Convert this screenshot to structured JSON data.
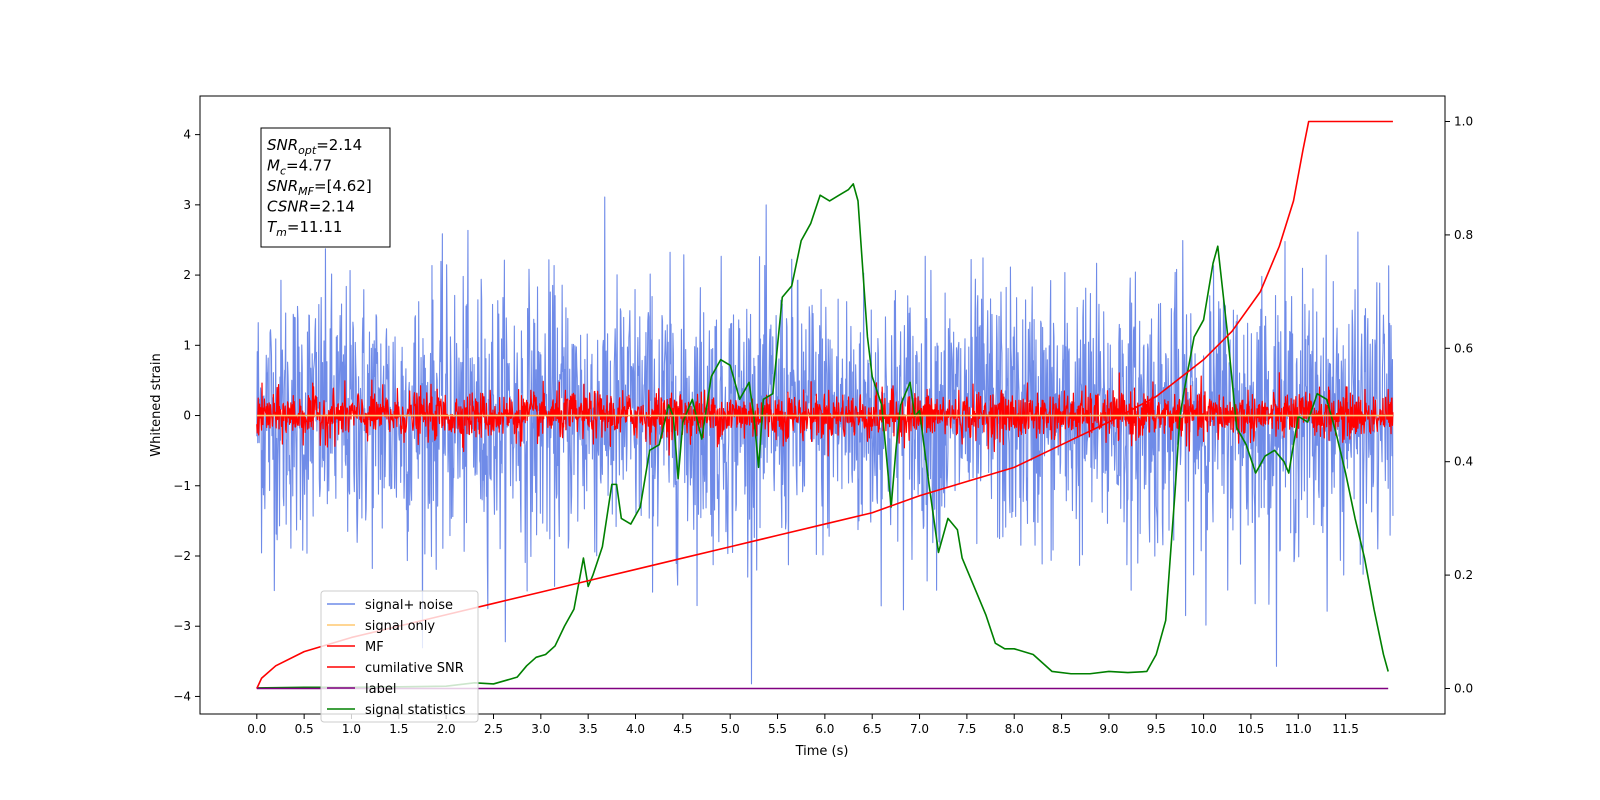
{
  "chart_data": {
    "type": "line",
    "xlabel": "Time (s)",
    "ylabel_left": "Whitened strain",
    "ylabel_right": "",
    "xlim": [
      -0.6,
      12.55
    ],
    "ylim_left": [
      -4.25,
      4.55
    ],
    "ylim_right": [
      -0.045,
      1.045
    ],
    "x_ticks": [
      0.0,
      0.5,
      1.0,
      1.5,
      2.0,
      2.5,
      3.0,
      3.5,
      4.0,
      4.5,
      5.0,
      5.5,
      6.0,
      6.5,
      7.0,
      7.5,
      8.0,
      8.5,
      9.0,
      9.5,
      10.0,
      10.5,
      11.0,
      11.5
    ],
    "x_tick_labels": [
      "0.0",
      "0.5",
      "1.0",
      "1.5",
      "2.0",
      "2.5",
      "3.0",
      "3.5",
      "4.0",
      "4.5",
      "5.0",
      "5.5",
      "6.0",
      "6.5",
      "7.0",
      "7.5",
      "8.0",
      "8.5",
      "9.0",
      "9.5",
      "10.0",
      "10.5",
      "11.0",
      "11.5"
    ],
    "y_ticks_left": [
      -4,
      -3,
      -2,
      -1,
      0,
      1,
      2,
      3,
      4
    ],
    "y_tick_labels_left": [
      "−4",
      "−3",
      "−2",
      "−1",
      "0",
      "1",
      "2",
      "3",
      "4"
    ],
    "y_ticks_right": [
      0.0,
      0.2,
      0.4,
      0.6,
      0.8,
      1.0
    ],
    "y_tick_labels_right": [
      "0.0",
      "0.2",
      "0.4",
      "0.6",
      "0.8",
      "1.0"
    ],
    "grid": false,
    "legend_position": "lower-left",
    "annotation": [
      {
        "base": "SNR",
        "sub": "opt",
        "rest": "=2.14"
      },
      {
        "base": "M",
        "sub": "c",
        "rest": "=4.77"
      },
      {
        "base": "SNR",
        "sub": "MF",
        "rest": "=[4.62]"
      },
      {
        "base": "CSNR",
        "sub": "",
        "rest": "=2.14"
      },
      {
        "base": "T",
        "sub": "m",
        "rest": "=11.11"
      }
    ],
    "series": [
      {
        "name": "signal+ noise",
        "axis": "left",
        "color": "#6f8be8",
        "style": "noise",
        "x_range": [
          0,
          12
        ],
        "approx_std": 0.95,
        "max_abs": 4.2
      },
      {
        "name": "signal only",
        "axis": "left",
        "color": "#ffc870",
        "style": "flat",
        "x": [
          0,
          12
        ],
        "y": [
          0,
          0
        ]
      },
      {
        "name": "MF",
        "axis": "left",
        "color": "#ff0000",
        "style": "noise",
        "x_range": [
          0,
          12
        ],
        "approx_std": 0.17,
        "max_abs": 1.0
      },
      {
        "name": "cumilative SNR",
        "axis": "right",
        "color": "#ff0000",
        "style": "line",
        "x": [
          0,
          0.05,
          0.2,
          0.5,
          1.0,
          1.5,
          2.0,
          2.5,
          3.0,
          3.5,
          4.0,
          4.5,
          5.0,
          5.5,
          6.0,
          6.5,
          7.0,
          7.5,
          8.0,
          8.5,
          9.0,
          9.5,
          10.0,
          10.3,
          10.6,
          10.8,
          10.95,
          11.05,
          11.11,
          12.0
        ],
        "y": [
          0.0,
          0.018,
          0.04,
          0.065,
          0.09,
          0.11,
          0.13,
          0.15,
          0.17,
          0.19,
          0.21,
          0.23,
          0.25,
          0.27,
          0.29,
          0.31,
          0.34,
          0.365,
          0.39,
          0.43,
          0.47,
          0.515,
          0.58,
          0.63,
          0.7,
          0.78,
          0.86,
          0.95,
          1.0,
          1.0
        ]
      },
      {
        "name": "label",
        "axis": "right",
        "color": "#800080",
        "style": "line",
        "x": [
          0,
          11.95
        ],
        "y": [
          0.0,
          0.0
        ]
      },
      {
        "name": "signal statistics",
        "axis": "right",
        "color": "#008000",
        "style": "line",
        "x": [
          0.0,
          0.5,
          1.0,
          1.5,
          2.0,
          2.3,
          2.5,
          2.75,
          2.85,
          2.95,
          3.05,
          3.15,
          3.25,
          3.35,
          3.45,
          3.5,
          3.55,
          3.65,
          3.75,
          3.8,
          3.85,
          3.95,
          4.05,
          4.15,
          4.25,
          4.35,
          4.4,
          4.45,
          4.5,
          4.6,
          4.7,
          4.8,
          4.9,
          5.0,
          5.1,
          5.2,
          5.25,
          5.3,
          5.35,
          5.45,
          5.55,
          5.65,
          5.75,
          5.85,
          5.95,
          6.05,
          6.15,
          6.25,
          6.3,
          6.35,
          6.45,
          6.5,
          6.6,
          6.7,
          6.75,
          6.8,
          6.9,
          6.95,
          7.0,
          7.1,
          7.2,
          7.3,
          7.4,
          7.45,
          7.5,
          7.6,
          7.7,
          7.8,
          7.9,
          8.0,
          8.2,
          8.4,
          8.6,
          8.8,
          9.0,
          9.2,
          9.4,
          9.5,
          9.6,
          9.7,
          9.75,
          9.8,
          9.9,
          10.0,
          10.1,
          10.15,
          10.25,
          10.35,
          10.45,
          10.55,
          10.65,
          10.75,
          10.85,
          10.9,
          11.0,
          11.1,
          11.2,
          11.3,
          11.4,
          11.5,
          11.6,
          11.7,
          11.8,
          11.9,
          11.95
        ],
        "y": [
          0.001,
          0.002,
          0.002,
          0.003,
          0.004,
          0.01,
          0.008,
          0.02,
          0.04,
          0.055,
          0.06,
          0.075,
          0.11,
          0.14,
          0.23,
          0.18,
          0.2,
          0.25,
          0.36,
          0.36,
          0.3,
          0.29,
          0.32,
          0.42,
          0.43,
          0.5,
          0.48,
          0.37,
          0.47,
          0.51,
          0.44,
          0.55,
          0.58,
          0.57,
          0.51,
          0.54,
          0.48,
          0.39,
          0.51,
          0.52,
          0.69,
          0.71,
          0.79,
          0.82,
          0.87,
          0.86,
          0.87,
          0.88,
          0.89,
          0.86,
          0.62,
          0.55,
          0.5,
          0.32,
          0.42,
          0.5,
          0.54,
          0.48,
          0.49,
          0.36,
          0.24,
          0.3,
          0.28,
          0.23,
          0.21,
          0.17,
          0.13,
          0.08,
          0.07,
          0.07,
          0.06,
          0.03,
          0.026,
          0.026,
          0.03,
          0.028,
          0.03,
          0.06,
          0.12,
          0.35,
          0.48,
          0.53,
          0.62,
          0.65,
          0.75,
          0.78,
          0.63,
          0.46,
          0.43,
          0.38,
          0.41,
          0.42,
          0.4,
          0.38,
          0.48,
          0.47,
          0.52,
          0.51,
          0.45,
          0.38,
          0.3,
          0.23,
          0.14,
          0.06,
          0.03
        ]
      }
    ]
  }
}
